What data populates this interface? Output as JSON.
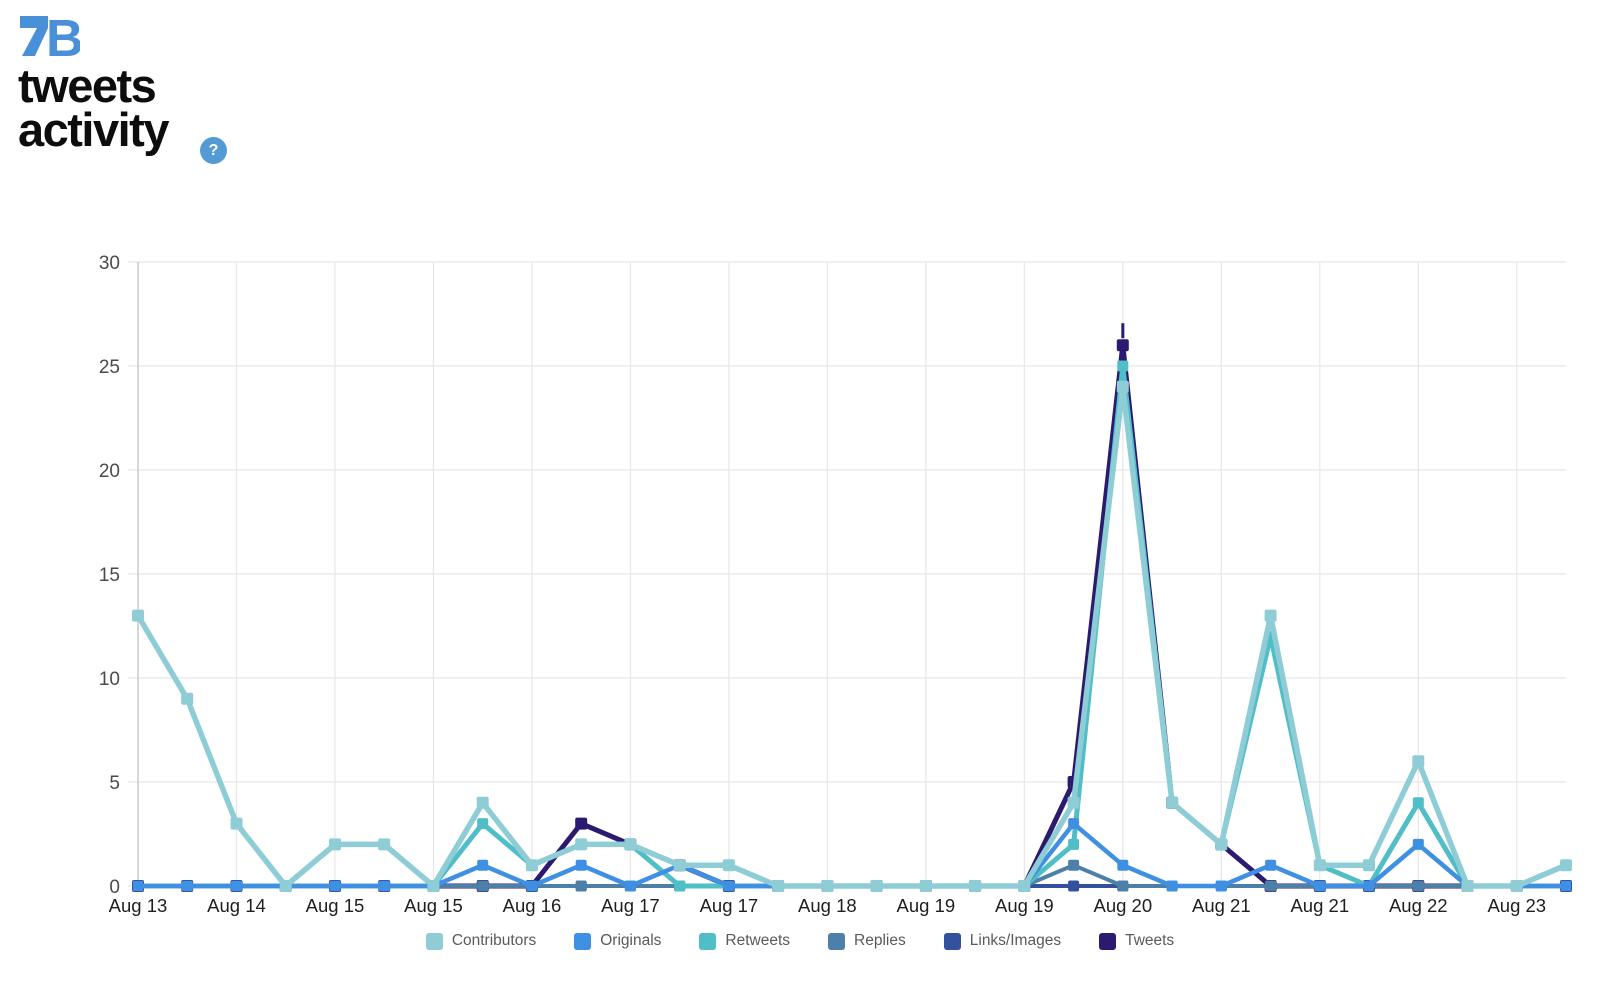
{
  "header": {
    "logo_letter": "B",
    "title_line1": "tweets",
    "title_line2": "activity",
    "help_label": "?",
    "brand_color": "#4a90d9",
    "help_color": "#549bd5"
  },
  "chart_data": {
    "type": "line",
    "title": "tweets activity",
    "x_labels": [
      "Aug 13",
      "Aug 14",
      "Aug 15",
      "Aug 15",
      "Aug 16",
      "Aug 17",
      "Aug 17",
      "Aug 18",
      "Aug 19",
      "Aug 19",
      "Aug 20",
      "Aug 21",
      "Aug 21",
      "Aug 22",
      "Aug 23"
    ],
    "points_per_label": 2,
    "num_points": 30,
    "y_ticks": [
      0,
      5,
      10,
      15,
      20,
      25,
      30
    ],
    "ylim": [
      0,
      30
    ],
    "grid": true,
    "legend_position": "bottom",
    "series": [
      {
        "name": "Contributors",
        "color": "#8ecdd5",
        "line_width": 5.5,
        "marker_size": 12,
        "values": [
          13,
          9,
          3,
          0,
          2,
          2,
          0,
          4,
          1,
          2,
          2,
          1,
          1,
          0,
          0,
          0,
          0,
          0,
          0,
          4,
          24,
          4,
          2,
          13,
          1,
          1,
          6,
          0,
          0,
          1
        ]
      },
      {
        "name": "Originals",
        "color": "#3f90e2",
        "line_width": 4.5,
        "marker_size": 11,
        "values": [
          0,
          0,
          0,
          0,
          0,
          0,
          0,
          1,
          0,
          1,
          0,
          1,
          0,
          0,
          0,
          0,
          0,
          0,
          0,
          3,
          1,
          0,
          0,
          1,
          0,
          0,
          2,
          0,
          0,
          0
        ]
      },
      {
        "name": "Retweets",
        "color": "#4fbec6",
        "line_width": 5,
        "marker_size": 11,
        "values": [
          0,
          0,
          0,
          0,
          0,
          0,
          0,
          3,
          1,
          2,
          2,
          0,
          0,
          0,
          0,
          0,
          0,
          0,
          0,
          2,
          25,
          4,
          2,
          12,
          1,
          0,
          4,
          0,
          0,
          0
        ]
      },
      {
        "name": "Replies",
        "color": "#4d80a8",
        "line_width": 4,
        "marker_size": 11,
        "values": [
          0,
          0,
          0,
          0,
          0,
          0,
          0,
          0,
          0,
          0,
          0,
          0,
          0,
          0,
          0,
          0,
          0,
          0,
          0,
          1,
          0,
          0,
          0,
          0,
          0,
          0,
          0,
          0,
          0,
          0
        ]
      },
      {
        "name": "Links/Images",
        "color": "#33519e",
        "line_width": 4,
        "marker_size": 11,
        "values": [
          0,
          0,
          0,
          0,
          0,
          0,
          0,
          0,
          0,
          0,
          0,
          0,
          0,
          0,
          0,
          0,
          0,
          0,
          0,
          0,
          0,
          0,
          0,
          0,
          0,
          0,
          0,
          0,
          0,
          0
        ]
      },
      {
        "name": "Tweets",
        "color": "#2b1a70",
        "line_width": 5,
        "marker_size": 12,
        "values": [
          0,
          0,
          0,
          0,
          0,
          0,
          0,
          0,
          0,
          3,
          2,
          1,
          0,
          0,
          0,
          0,
          0,
          0,
          0,
          5,
          26,
          4,
          2,
          0,
          0,
          0,
          0,
          0,
          0,
          0
        ]
      }
    ],
    "peak_ticks": [
      {
        "series": "Tweets",
        "index": 20
      },
      {
        "series": "Retweets",
        "index": 23
      }
    ],
    "colors": {
      "grid": "#e7e7e7",
      "axis": "#c9c9c9"
    }
  }
}
